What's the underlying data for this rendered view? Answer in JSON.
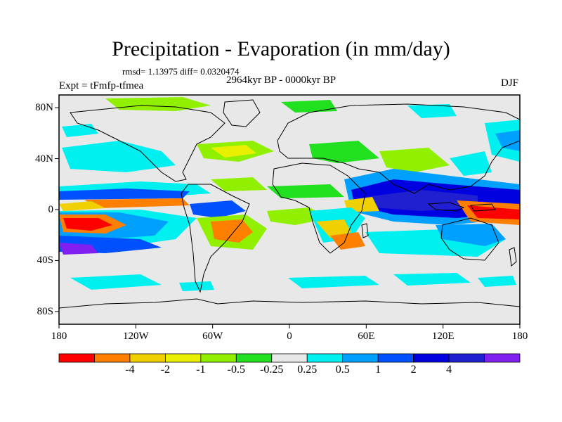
{
  "title": "Precipitation - Evaporation (in mm/day)",
  "stats": "rmsd= 1.13975 diff= 0.0320474",
  "period": "2964kyr BP - 0000kyr BP",
  "experiment": "Expt = tFmfp-tfmea",
  "season": "DJF",
  "lat_labels": [
    "80N",
    "40N",
    "0",
    "40S",
    "80S"
  ],
  "lat_values": [
    80,
    40,
    0,
    -40,
    -80
  ],
  "lon_labels": [
    "180",
    "120W",
    "60W",
    "0",
    "60E",
    "120E",
    "180"
  ],
  "lon_values": [
    -180,
    -120,
    -60,
    0,
    60,
    120,
    180
  ],
  "lat_range": [
    -90,
    90
  ],
  "lon_range": [
    -180,
    180
  ],
  "colorbar": {
    "levels": [
      "-4",
      "-2",
      "-1",
      "-0.5",
      "-0.25",
      "0.25",
      "0.5",
      "1",
      "2",
      "4"
    ],
    "colors": [
      "#ff0000",
      "#ff8000",
      "#f0d000",
      "#e8f000",
      "#90f000",
      "#20e020",
      "#e8e8e8",
      "#00f0f0",
      "#00a0ff",
      "#0050ff",
      "#0000e0",
      "#2020d0",
      "#8020f0"
    ]
  },
  "colors": {
    "land_outline": "#000000",
    "background": "#e8e8e8"
  }
}
